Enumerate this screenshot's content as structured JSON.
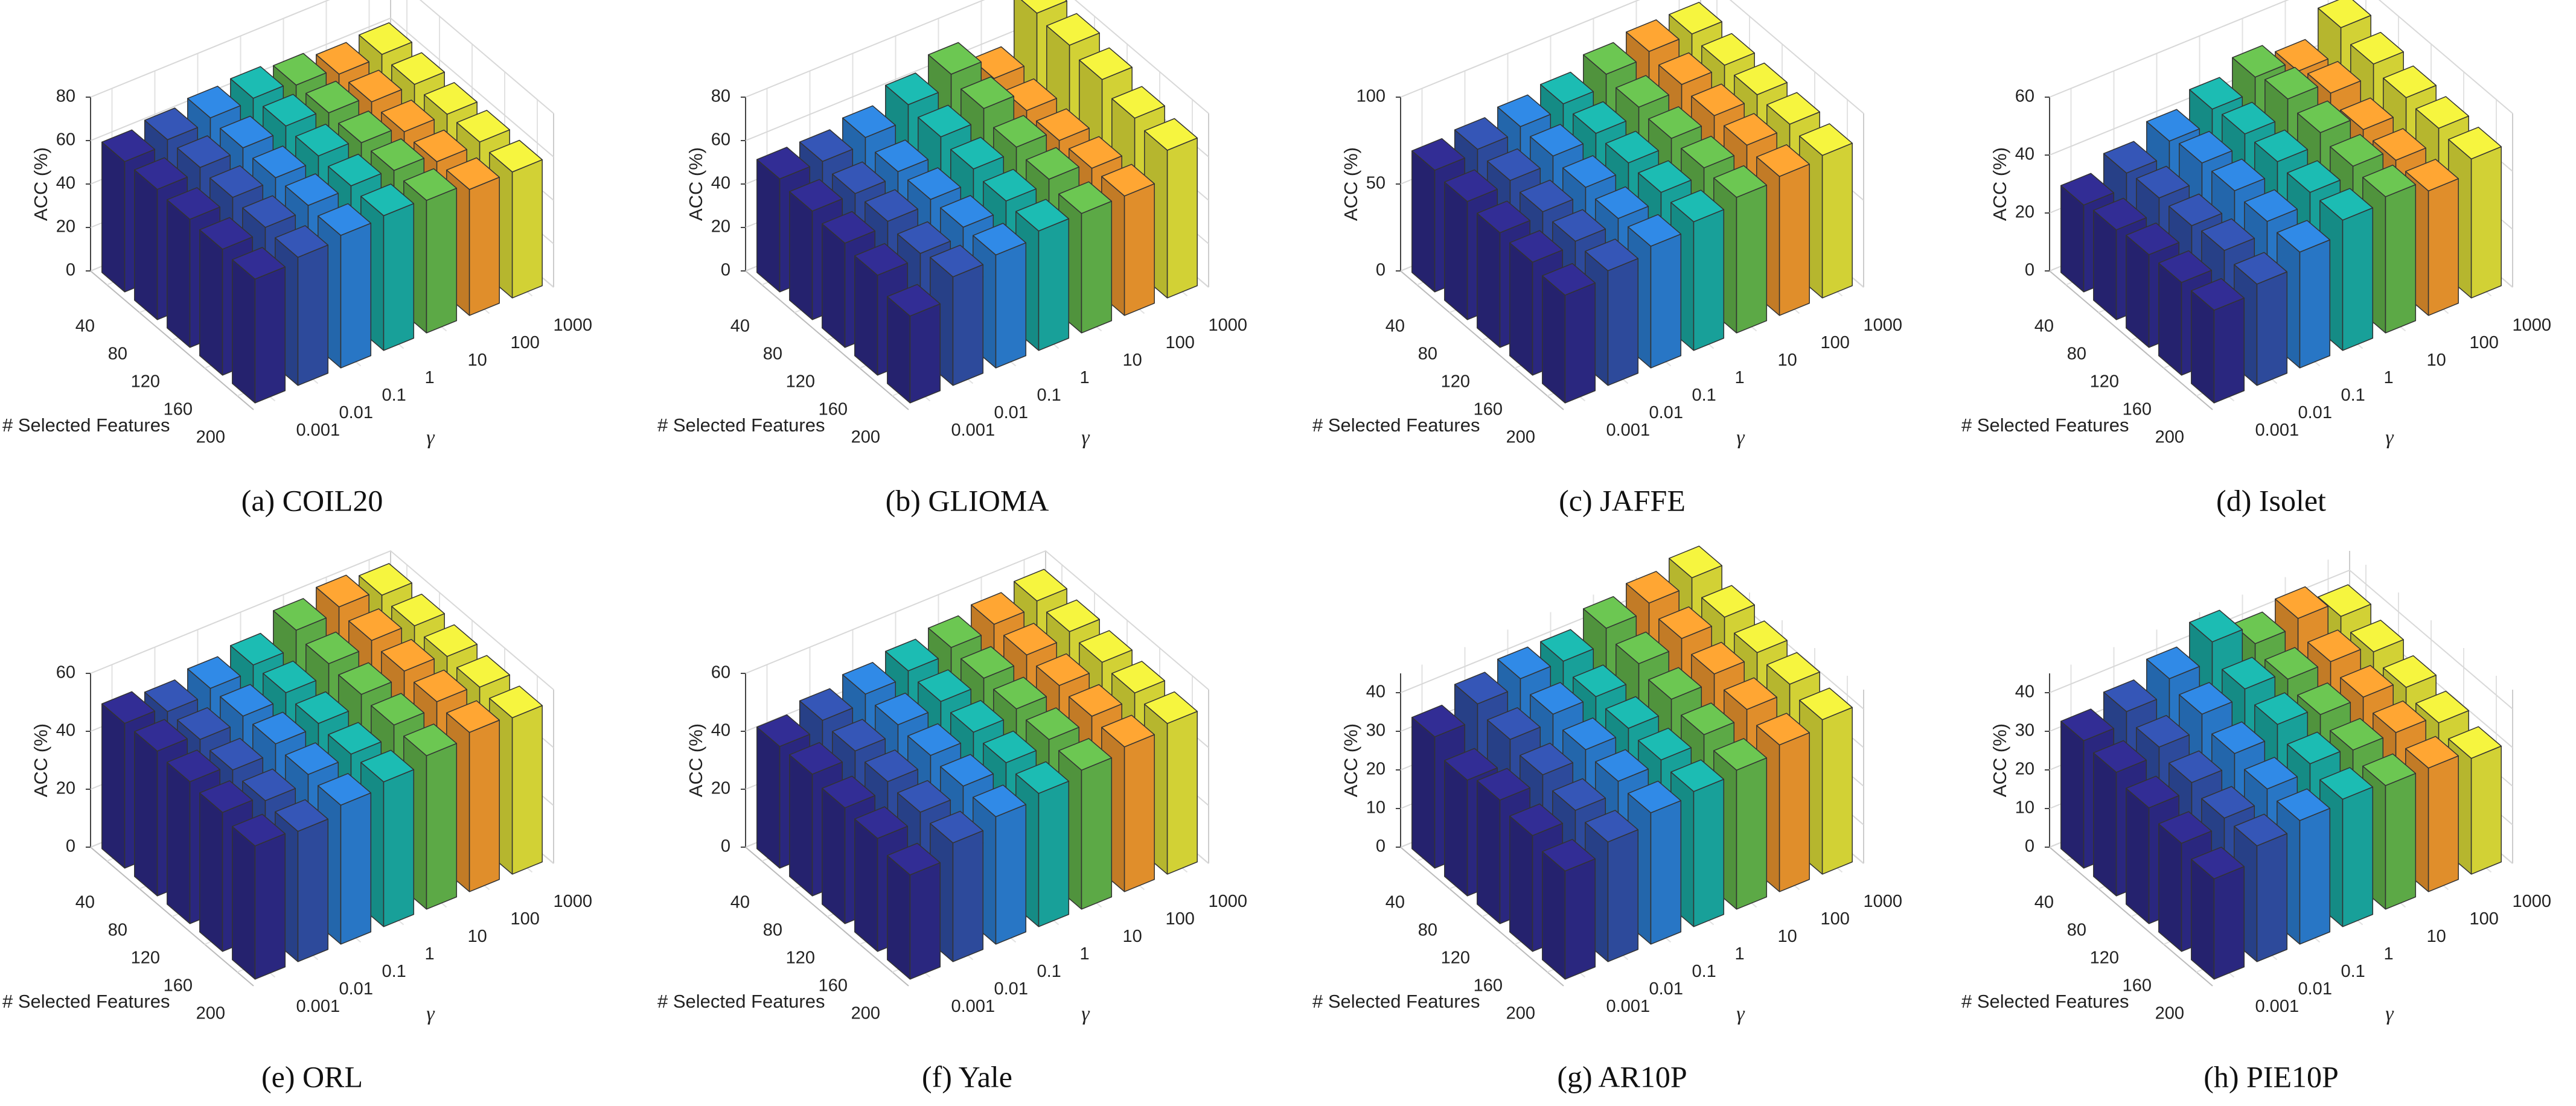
{
  "chart_data": [
    {
      "type": "bar3d",
      "caption": "(a) COIL20",
      "xlabel": "# Selected Features",
      "ylabel": "γ",
      "zlabel": "ACC (%)",
      "features": [
        40,
        80,
        120,
        160,
        200
      ],
      "gammas": [
        0.001,
        0.01,
        0.1,
        1,
        10,
        100,
        1000
      ],
      "colors": [
        "#2e2a8a",
        "#3150a9",
        "#2c80d6",
        "#1aaea6",
        "#64b84c",
        "#f39a2f",
        "#e4e33a"
      ],
      "zlim": [
        0,
        80
      ],
      "zticks": [
        0,
        20,
        40,
        60,
        80
      ],
      "values": [
        [
          60,
          60,
          59,
          58,
          57
        ],
        [
          62,
          62,
          61,
          60,
          59
        ],
        [
          64,
          63,
          62,
          62,
          61
        ],
        [
          65,
          65,
          64,
          63,
          62
        ],
        [
          63,
          63,
          62,
          62,
          61
        ],
        [
          60,
          60,
          59,
          58,
          58
        ],
        [
          61,
          60,
          59,
          59,
          58
        ]
      ]
    },
    {
      "type": "bar3d",
      "caption": "(b) GLIOMA",
      "xlabel": "# Selected Features",
      "ylabel": "γ",
      "zlabel": "ACC (%)",
      "features": [
        40,
        80,
        120,
        160,
        200
      ],
      "gammas": [
        0.001,
        0.01,
        0.1,
        1,
        10,
        100,
        1000
      ],
      "colors": [
        "#2e2a8a",
        "#3150a9",
        "#2c80d6",
        "#1aaea6",
        "#64b84c",
        "#f39a2f",
        "#e4e33a"
      ],
      "zlim": [
        0,
        80
      ],
      "zticks": [
        0,
        20,
        40,
        60,
        80
      ],
      "values": [
        [
          52,
          50,
          48,
          46,
          40
        ],
        [
          52,
          50,
          50,
          48,
          50
        ],
        [
          55,
          52,
          52,
          52,
          52
        ],
        [
          62,
          60,
          58,
          56,
          55
        ],
        [
          68,
          65,
          60,
          58,
          55
        ],
        [
          58,
          56,
          55,
          55,
          55
        ],
        [
          80,
          78,
          75,
          70,
          68
        ]
      ]
    },
    {
      "type": "bar3d",
      "caption": "(c) JAFFE",
      "xlabel": "# Selected Features",
      "ylabel": "γ",
      "zlabel": "ACC (%)",
      "features": [
        40,
        80,
        120,
        160,
        200
      ],
      "gammas": [
        0.001,
        0.01,
        0.1,
        1,
        10,
        100,
        1000
      ],
      "colors": [
        "#2e2a8a",
        "#3150a9",
        "#2c80d6",
        "#1aaea6",
        "#64b84c",
        "#f39a2f",
        "#e4e33a"
      ],
      "zlim": [
        0,
        100
      ],
      "zticks": [
        0,
        50,
        100
      ],
      "values": [
        [
          70,
          68,
          66,
          65,
          62
        ],
        [
          72,
          70,
          68,
          67,
          66
        ],
        [
          75,
          74,
          72,
          70,
          70
        ],
        [
          78,
          77,
          76,
          75,
          74
        ],
        [
          85,
          82,
          80,
          79,
          78
        ],
        [
          88,
          85,
          83,
          82,
          80
        ],
        [
          88,
          86,
          85,
          84,
          82
        ]
      ]
    },
    {
      "type": "bar3d",
      "caption": "(d) Isolet",
      "xlabel": "# Selected Features",
      "ylabel": "γ",
      "zlabel": "ACC (%)",
      "features": [
        40,
        80,
        120,
        160,
        200
      ],
      "gammas": [
        0.001,
        0.01,
        0.1,
        1,
        10,
        100,
        1000
      ],
      "colors": [
        "#2e2a8a",
        "#3150a9",
        "#2c80d6",
        "#1aaea6",
        "#64b84c",
        "#f39a2f",
        "#e4e33a"
      ],
      "zlim": [
        0,
        60
      ],
      "zticks": [
        0,
        20,
        40,
        60
      ],
      "values": [
        [
          30,
          31,
          32,
          32,
          32
        ],
        [
          35,
          36,
          36,
          37,
          35
        ],
        [
          40,
          42,
          42,
          41,
          40
        ],
        [
          45,
          46,
          46,
          45,
          45
        ],
        [
          50,
          52,
          50,
          48,
          47
        ],
        [
          46,
          48,
          45,
          44,
          43
        ],
        [
          55,
          52,
          50,
          49,
          48
        ]
      ]
    },
    {
      "type": "bar3d",
      "caption": "(e) ORL",
      "xlabel": "# Selected Features",
      "ylabel": "γ",
      "zlabel": "ACC (%)",
      "features": [
        40,
        80,
        120,
        160,
        200
      ],
      "gammas": [
        0.001,
        0.01,
        0.1,
        1,
        10,
        100,
        1000
      ],
      "colors": [
        "#2e2a8a",
        "#3150a9",
        "#2c80d6",
        "#1aaea6",
        "#64b84c",
        "#f39a2f",
        "#e4e33a"
      ],
      "zlim": [
        0,
        60
      ],
      "zticks": [
        0,
        20,
        40,
        60
      ],
      "values": [
        [
          50,
          50,
          49,
          48,
          46
        ],
        [
          48,
          48,
          47,
          46,
          45
        ],
        [
          50,
          50,
          50,
          49,
          48
        ],
        [
          52,
          52,
          51,
          50,
          50
        ],
        [
          58,
          56,
          55,
          54,
          53
        ],
        [
          60,
          58,
          57,
          56,
          55
        ],
        [
          58,
          57,
          56,
          55,
          54
        ]
      ]
    },
    {
      "type": "bar3d",
      "caption": "(f) Yale",
      "xlabel": "# Selected Features",
      "ylabel": "γ",
      "zlabel": "ACC (%)",
      "features": [
        40,
        80,
        120,
        160,
        200
      ],
      "gammas": [
        0.001,
        0.01,
        0.1,
        1,
        10,
        100,
        1000
      ],
      "colors": [
        "#2e2a8a",
        "#3150a9",
        "#2c80d6",
        "#1aaea6",
        "#64b84c",
        "#f39a2f",
        "#e4e33a"
      ],
      "zlim": [
        0,
        60
      ],
      "zticks": [
        0,
        20,
        40,
        60
      ],
      "values": [
        [
          42,
          42,
          40,
          39,
          36
        ],
        [
          45,
          44,
          43,
          42,
          41
        ],
        [
          48,
          47,
          46,
          45,
          44
        ],
        [
          50,
          49,
          48,
          47,
          46
        ],
        [
          52,
          51,
          50,
          49,
          48
        ],
        [
          54,
          53,
          52,
          51,
          50
        ],
        [
          56,
          55,
          54,
          53,
          52
        ]
      ]
    },
    {
      "type": "bar3d",
      "caption": "(g) AR10P",
      "xlabel": "# Selected Features",
      "ylabel": "γ",
      "zlabel": "ACC (%)",
      "features": [
        40,
        80,
        120,
        160,
        200
      ],
      "gammas": [
        0.001,
        0.01,
        0.1,
        1,
        10,
        100,
        1000
      ],
      "colors": [
        "#2e2a8a",
        "#3150a9",
        "#2c80d6",
        "#1aaea6",
        "#64b84c",
        "#f39a2f",
        "#e4e33a"
      ],
      "zlim": [
        0,
        45
      ],
      "zticks": [
        0,
        10,
        20,
        30,
        40
      ],
      "values": [
        [
          34,
          30,
          32,
          30,
          28
        ],
        [
          38,
          36,
          34,
          32,
          31
        ],
        [
          40,
          38,
          36,
          35,
          34
        ],
        [
          40,
          38,
          37,
          36,
          35
        ],
        [
          44,
          42,
          40,
          38,
          36
        ],
        [
          46,
          44,
          42,
          40,
          38
        ],
        [
          48,
          45,
          43,
          42,
          40
        ]
      ]
    },
    {
      "type": "bar3d",
      "caption": "(h) PIE10P",
      "xlabel": "# Selected Features",
      "ylabel": "γ",
      "zlabel": "ACC (%)",
      "features": [
        40,
        80,
        120,
        160,
        200
      ],
      "gammas": [
        0.001,
        0.01,
        0.1,
        1,
        10,
        100,
        1000
      ],
      "colors": [
        "#2e2a8a",
        "#3150a9",
        "#2c80d6",
        "#1aaea6",
        "#64b84c",
        "#f39a2f",
        "#e4e33a"
      ],
      "zlim": [
        0,
        45
      ],
      "zticks": [
        0,
        10,
        20,
        30,
        40
      ],
      "values": [
        [
          33,
          32,
          30,
          28,
          26
        ],
        [
          36,
          34,
          32,
          30,
          30
        ],
        [
          40,
          38,
          35,
          33,
          32
        ],
        [
          45,
          40,
          38,
          35,
          33
        ],
        [
          40,
          38,
          36,
          34,
          32
        ],
        [
          42,
          38,
          36,
          34,
          32
        ],
        [
          38,
          36,
          34,
          32,
          30
        ]
      ]
    }
  ]
}
